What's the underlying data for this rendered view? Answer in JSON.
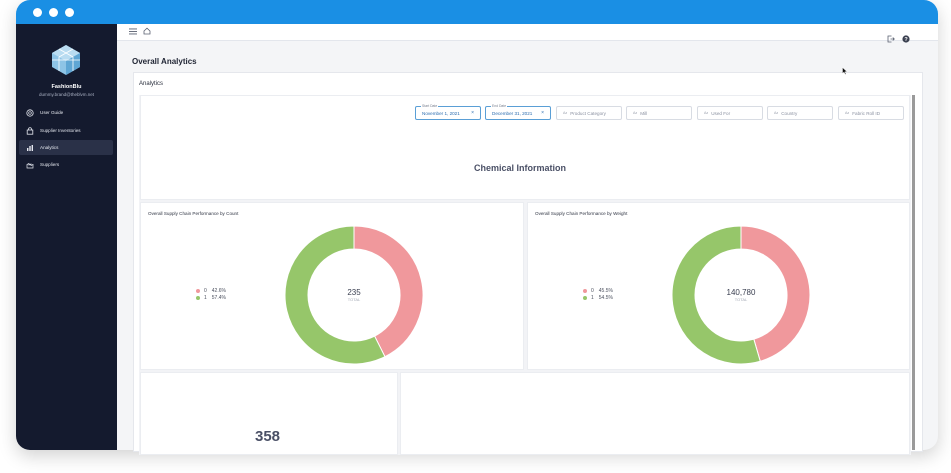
{
  "sidebar": {
    "brand": "FashionBlu",
    "email": "dummy.brand@theblvm.net",
    "items": [
      {
        "label": "User Guide",
        "icon": "help-circle-icon"
      },
      {
        "label": "Supplier Inventories",
        "icon": "bag-icon"
      },
      {
        "label": "Analytics",
        "icon": "bar-chart-icon",
        "active": true
      },
      {
        "label": "Suppliers",
        "icon": "factory-icon"
      }
    ]
  },
  "topbar": {
    "menu_icon": "hamburger-icon",
    "home_icon": "home-icon",
    "logout_icon": "logout-icon",
    "help_icon": "help-icon"
  },
  "page": {
    "title": "Overall Analytics",
    "card_title": "Analytics"
  },
  "filters": {
    "start_date": {
      "label": "Start Date",
      "value": "November 1, 2021"
    },
    "end_date": {
      "label": "End Date",
      "value": "December 31, 2021"
    },
    "product_category": "Product Category",
    "mill": "Mill",
    "used_for": "Used For",
    "country": "Country",
    "fabric_roll_id": "Fabric Roll ID",
    "az": "Az"
  },
  "section": {
    "title": "Chemical Information"
  },
  "charts": [
    {
      "title": "Overall Supply Chain Performance by Count",
      "center_value": "235",
      "center_label": "TOTAL",
      "legend": [
        {
          "name": "0",
          "percent": "42.6%"
        },
        {
          "name": "1",
          "percent": "57.4%"
        }
      ]
    },
    {
      "title": "Overall Supply Chain Performance by Weight",
      "center_value": "140,780",
      "center_label": "TOTAL",
      "legend": [
        {
          "name": "0",
          "percent": "45.5%"
        },
        {
          "name": "1",
          "percent": "54.5%"
        }
      ]
    }
  ],
  "chart_data": [
    {
      "type": "pie",
      "title": "Overall Supply Chain Performance by Count",
      "categories": [
        "0",
        "1"
      ],
      "values": [
        42.6,
        57.4
      ],
      "colors": [
        "#f0989c",
        "#96c66a"
      ],
      "donut": true,
      "center_value": "235"
    },
    {
      "type": "pie",
      "title": "Overall Supply Chain Performance by Weight",
      "categories": [
        "0",
        "1"
      ],
      "values": [
        45.5,
        54.5
      ],
      "colors": [
        "#f0989c",
        "#96c66a"
      ],
      "donut": true,
      "center_value": "140,780"
    }
  ],
  "bottom": {
    "big_number": "358"
  },
  "colors": {
    "titlebar": "#1a8fe4",
    "sidebar": "#141a2e",
    "slice0": "#f0989c",
    "slice1": "#96c66a"
  }
}
